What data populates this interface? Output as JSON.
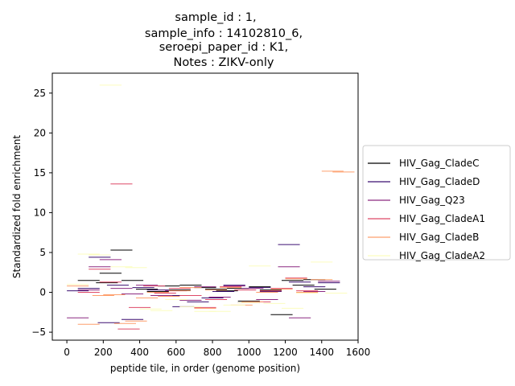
{
  "chart_data": {
    "type": "line",
    "title_lines": [
      "sample_id : 1,",
      "sample_info : 14102810_6,",
      "seroepi_paper_id : K1,",
      "Notes : ZIKV-only"
    ],
    "xlabel": "peptide tile, in order (genome position)",
    "ylabel": "Standardized fold enrichment",
    "xlim": [
      -80,
      1600
    ],
    "ylim": [
      -6,
      27.5
    ],
    "xticks": [
      0,
      200,
      400,
      600,
      800,
      1000,
      1200,
      1400,
      1600
    ],
    "yticks": [
      -5,
      0,
      5,
      10,
      15,
      20,
      25
    ],
    "legend_position": "right",
    "series": [
      {
        "name": "HIV_Gag_CladeC",
        "color": "#000000",
        "segments": [
          [
            60,
            180,
            1.5
          ],
          [
            160,
            280,
            1.2
          ],
          [
            180,
            300,
            2.4
          ],
          [
            240,
            360,
            5.3
          ],
          [
            300,
            420,
            1.5
          ],
          [
            380,
            500,
            0.4
          ],
          [
            440,
            560,
            0.1
          ],
          [
            500,
            620,
            0.8
          ],
          [
            560,
            680,
            0.3
          ],
          [
            620,
            740,
            0.9
          ],
          [
            700,
            820,
            0.6
          ],
          [
            760,
            880,
            0.4
          ],
          [
            820,
            940,
            0.2
          ],
          [
            880,
            1000,
            0.5
          ],
          [
            940,
            1060,
            -1.1
          ],
          [
            1000,
            1120,
            0.7
          ],
          [
            1060,
            1180,
            0.3
          ],
          [
            1120,
            1240,
            -2.8
          ],
          [
            1180,
            1300,
            1.5
          ],
          [
            1240,
            1360,
            0.9
          ],
          [
            1300,
            1420,
            1.6
          ],
          [
            1360,
            1480,
            0.4
          ]
        ]
      },
      {
        "name": "HIV_Gag_CladeD",
        "color": "#3b0f70",
        "segments": [
          [
            0,
            120,
            0.2
          ],
          [
            60,
            180,
            0.5
          ],
          [
            120,
            240,
            4.4
          ],
          [
            170,
            290,
            -3.8
          ],
          [
            220,
            340,
            0.9
          ],
          [
            300,
            420,
            -3.4
          ],
          [
            360,
            480,
            0.6
          ],
          [
            440,
            560,
            0.3
          ],
          [
            520,
            640,
            -0.4
          ],
          [
            580,
            700,
            -1.8
          ],
          [
            660,
            780,
            -1.2
          ],
          [
            740,
            860,
            -0.7
          ],
          [
            800,
            920,
            0.1
          ],
          [
            860,
            980,
            0.9
          ],
          [
            940,
            1060,
            -1.3
          ],
          [
            1000,
            1120,
            0.6
          ],
          [
            1060,
            1180,
            0.1
          ],
          [
            1160,
            1280,
            6.0
          ],
          [
            1220,
            1340,
            1.3
          ],
          [
            1300,
            1420,
            0.7
          ],
          [
            1380,
            1500,
            1.2
          ]
        ]
      },
      {
        "name": "HIV_Gag_Q23",
        "color": "#8c2981",
        "segments": [
          [
            0,
            120,
            -3.2
          ],
          [
            60,
            180,
            0.3
          ],
          [
            120,
            240,
            3.2
          ],
          [
            180,
            300,
            4.1
          ],
          [
            240,
            360,
            0.5
          ],
          [
            300,
            420,
            -0.2
          ],
          [
            380,
            500,
            0.9
          ],
          [
            460,
            580,
            -0.4
          ],
          [
            540,
            660,
            0.2
          ],
          [
            620,
            740,
            -1.0
          ],
          [
            700,
            820,
            0.7
          ],
          [
            780,
            900,
            -0.6
          ],
          [
            860,
            980,
            0.8
          ],
          [
            960,
            1080,
            0.5
          ],
          [
            1040,
            1160,
            -0.9
          ],
          [
            1160,
            1280,
            3.2
          ],
          [
            1220,
            1340,
            -3.2
          ],
          [
            1300,
            1420,
            0.1
          ],
          [
            1380,
            1500,
            1.4
          ]
        ]
      },
      {
        "name": "HIV_Gag_CladeA1",
        "color": "#de4968",
        "segments": [
          [
            60,
            180,
            0.0
          ],
          [
            120,
            240,
            2.9
          ],
          [
            180,
            300,
            1.3
          ],
          [
            240,
            360,
            13.6
          ],
          [
            280,
            400,
            -4.6
          ],
          [
            340,
            460,
            -1.9
          ],
          [
            420,
            540,
            0.8
          ],
          [
            480,
            600,
            -0.1
          ],
          [
            560,
            680,
            0.5
          ],
          [
            620,
            740,
            -0.4
          ],
          [
            700,
            820,
            -1.9
          ],
          [
            760,
            880,
            -0.9
          ],
          [
            840,
            960,
            0.7
          ],
          [
            920,
            1040,
            0.3
          ],
          [
            1000,
            1120,
            -1.2
          ],
          [
            1060,
            1180,
            0.2
          ],
          [
            1120,
            1240,
            0.5
          ],
          [
            1200,
            1320,
            1.8
          ],
          [
            1260,
            1380,
            0.2
          ]
        ]
      },
      {
        "name": "HIV_Gag_CladeB",
        "color": "#fe9f6d",
        "segments": [
          [
            0,
            120,
            0.8
          ],
          [
            60,
            180,
            -4.0
          ],
          [
            140,
            260,
            -0.4
          ],
          [
            200,
            320,
            -0.3
          ],
          [
            260,
            380,
            -3.9
          ],
          [
            320,
            440,
            -3.6
          ],
          [
            380,
            500,
            -0.7
          ],
          [
            440,
            560,
            0.0
          ],
          [
            500,
            620,
            -0.5
          ],
          [
            560,
            680,
            0.2
          ],
          [
            620,
            740,
            0.6
          ],
          [
            700,
            820,
            -2.0
          ],
          [
            760,
            880,
            0.3
          ],
          [
            840,
            960,
            0.6
          ],
          [
            900,
            1020,
            -1.6
          ],
          [
            960,
            1080,
            -1.2
          ],
          [
            1040,
            1160,
            0.0
          ],
          [
            1120,
            1240,
            0.4
          ],
          [
            1200,
            1320,
            1.7
          ],
          [
            1260,
            1380,
            0.0
          ],
          [
            1340,
            1460,
            1.6
          ],
          [
            1400,
            1520,
            15.2
          ],
          [
            1460,
            1580,
            15.1
          ]
        ]
      },
      {
        "name": "HIV_Gag_CladeA2",
        "color": "#fcfdbf",
        "segments": [
          [
            0,
            120,
            1.0
          ],
          [
            60,
            180,
            4.8
          ],
          [
            120,
            240,
            4.7
          ],
          [
            180,
            300,
            26.0
          ],
          [
            240,
            360,
            3.2
          ],
          [
            320,
            440,
            3.1
          ],
          [
            400,
            520,
            -2.1
          ],
          [
            460,
            580,
            -2.3
          ],
          [
            540,
            660,
            -0.9
          ],
          [
            620,
            740,
            -1.8
          ],
          [
            700,
            820,
            -2.4
          ],
          [
            780,
            900,
            -2.4
          ],
          [
            860,
            980,
            -1.6
          ],
          [
            940,
            1060,
            -1.3
          ],
          [
            1000,
            1120,
            3.3
          ],
          [
            1080,
            1200,
            -1.4
          ],
          [
            1180,
            1300,
            -2.0
          ],
          [
            1260,
            1380,
            -0.1
          ],
          [
            1340,
            1460,
            3.8
          ],
          [
            1420,
            1540,
            -0.1
          ]
        ]
      }
    ]
  }
}
